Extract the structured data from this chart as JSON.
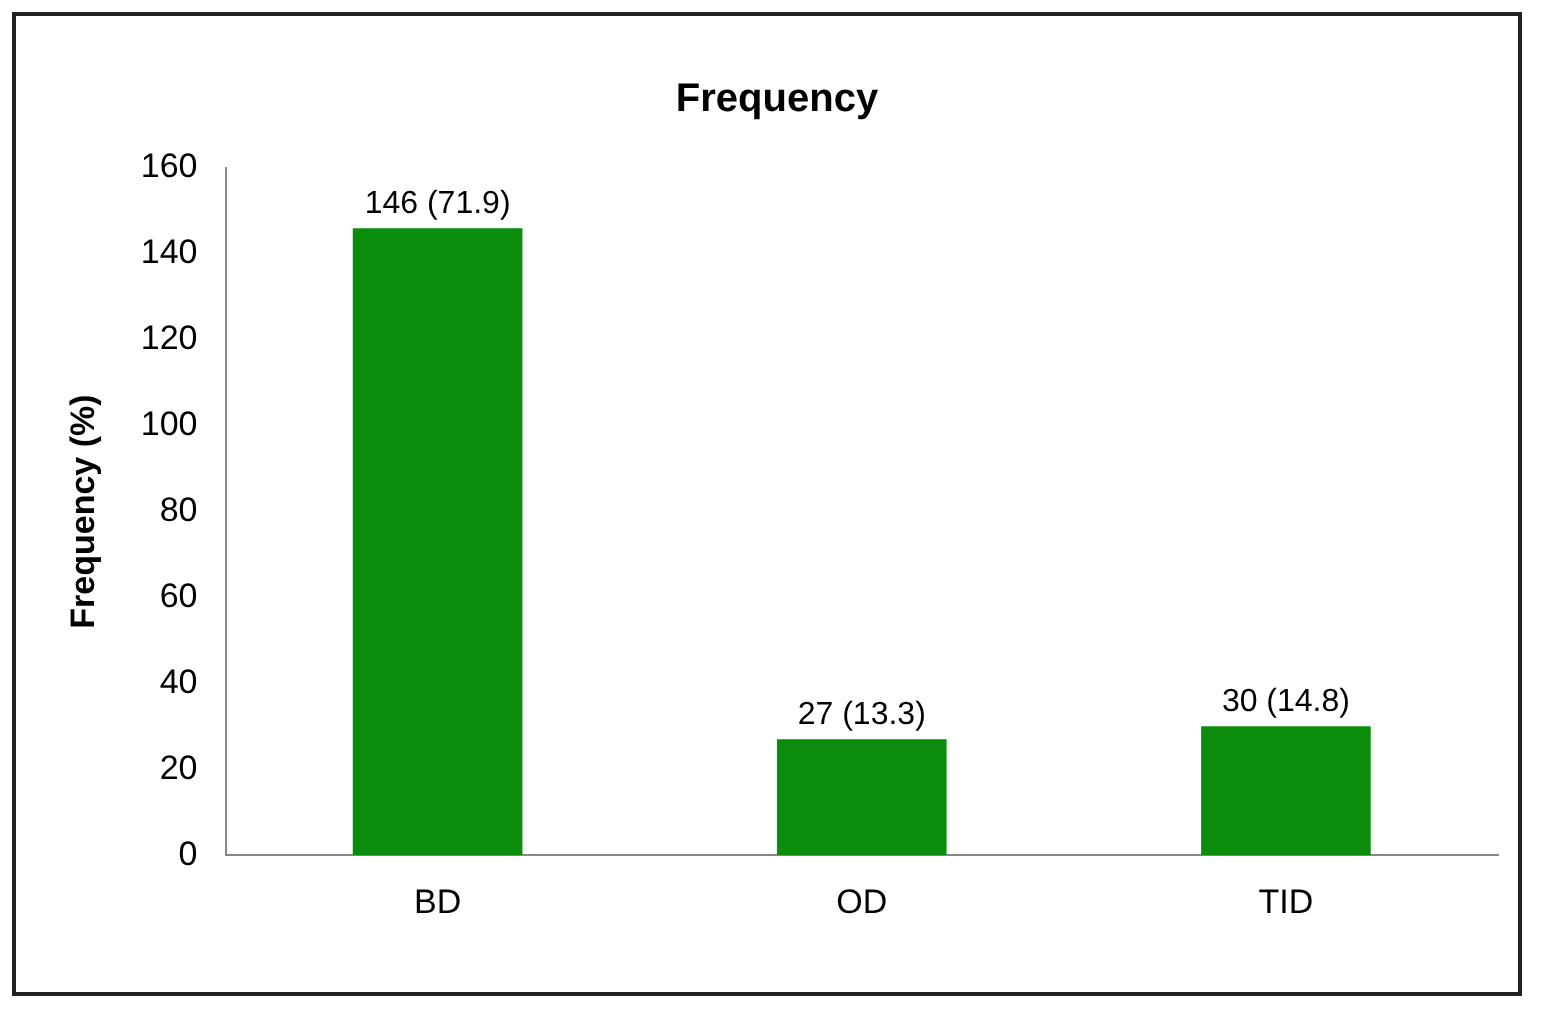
{
  "chart_data": {
    "type": "bar",
    "title": "Frequency",
    "ylabel": "Frequency (%)",
    "categories": [
      "BD",
      "OD",
      "TID"
    ],
    "values": [
      146,
      27,
      30
    ],
    "color": "#0c8c0c",
    "value_labels": [
      "146 (71.9)",
      "27 (13.3)",
      "30 (14.8)"
    ],
    "ylim": [
      0,
      160
    ],
    "yticks": [
      0,
      20,
      40,
      60,
      80,
      100,
      120,
      140,
      160
    ],
    "grid": false,
    "legend": false
  }
}
